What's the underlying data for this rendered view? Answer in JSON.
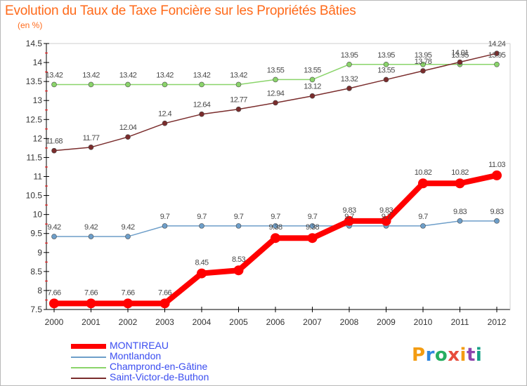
{
  "title": "Evolution du Taux de Taxe Foncière sur les Propriétés Bâties",
  "unit_label": "(en %)",
  "brand": {
    "name": "Proxiti",
    "letters": [
      "P",
      "r",
      "o",
      "x",
      "i",
      "t",
      "i"
    ],
    "colors": [
      "#f39c12",
      "#2e86de",
      "#27ae60",
      "#e74c3c",
      "#f39c12",
      "#8e44ad",
      "#16a085"
    ]
  },
  "chart_data": {
    "type": "line",
    "title": "Evolution du Taux de Taxe Foncière sur les Propriétés Bâties",
    "ylabel": "(en %)",
    "xlabel": "",
    "x": [
      "2000",
      "2001",
      "2002",
      "2003",
      "2004",
      "2005",
      "2006",
      "2007",
      "2008",
      "2009",
      "2010",
      "2011",
      "2012"
    ],
    "ylim": [
      7.5,
      14.5
    ],
    "yticks": [
      "7.5",
      "8",
      "8.5",
      "9",
      "9.5",
      "10",
      "10.5",
      "11",
      "11.5",
      "12",
      "12.5",
      "13",
      "13.5",
      "14",
      "14.5"
    ],
    "grid": false,
    "legend_position": "bottom-left",
    "series": [
      {
        "name": "MONTIREAU",
        "color": "#ff0000",
        "values": [
          7.66,
          7.66,
          7.66,
          7.66,
          8.45,
          8.53,
          9.38,
          9.38,
          9.83,
          9.83,
          10.82,
          10.82,
          11.03
        ],
        "labels": [
          "7.66",
          "7.66",
          "7.66",
          "7.66",
          "8.45",
          "8.53",
          "9.38",
          "9.38",
          "9.83",
          "9.83",
          "10.82",
          "10.82",
          "11.03"
        ]
      },
      {
        "name": "Montlandon",
        "color": "#6d9ec9",
        "values": [
          9.42,
          9.42,
          9.42,
          9.7,
          9.7,
          9.7,
          9.7,
          9.7,
          9.7,
          9.7,
          9.7,
          9.83,
          9.83
        ],
        "labels": [
          "9.42",
          "9.42",
          "9.42",
          "9.7",
          "9.7",
          "9.7",
          "9.7",
          "9.7",
          "9.7",
          "9.7",
          "9.7",
          "9.83",
          "9.83"
        ]
      },
      {
        "name": "Champrond-en-Gâtine",
        "color": "#8ad46a",
        "values": [
          13.42,
          13.42,
          13.42,
          13.42,
          13.42,
          13.42,
          13.55,
          13.55,
          13.95,
          13.95,
          13.95,
          13.95,
          13.95
        ],
        "labels": [
          "13.42",
          "13.42",
          "13.42",
          "13.42",
          "13.42",
          "13.42",
          "13.55",
          "13.55",
          "13.95",
          "13.95",
          "13.95",
          "13.95",
          "13.95"
        ]
      },
      {
        "name": "Saint-Victor-de-Buthon",
        "color": "#7a2c2c",
        "values": [
          11.68,
          11.77,
          12.04,
          12.4,
          12.64,
          12.77,
          12.94,
          13.12,
          13.32,
          13.55,
          13.78,
          14.01,
          14.24
        ],
        "labels": [
          "11.68",
          "11.77",
          "12.04",
          "12.4",
          "12.64",
          "12.77",
          "12.94",
          "13.12",
          "13.32",
          "13.55",
          "13.78",
          "14.01",
          "14.24"
        ]
      }
    ]
  }
}
